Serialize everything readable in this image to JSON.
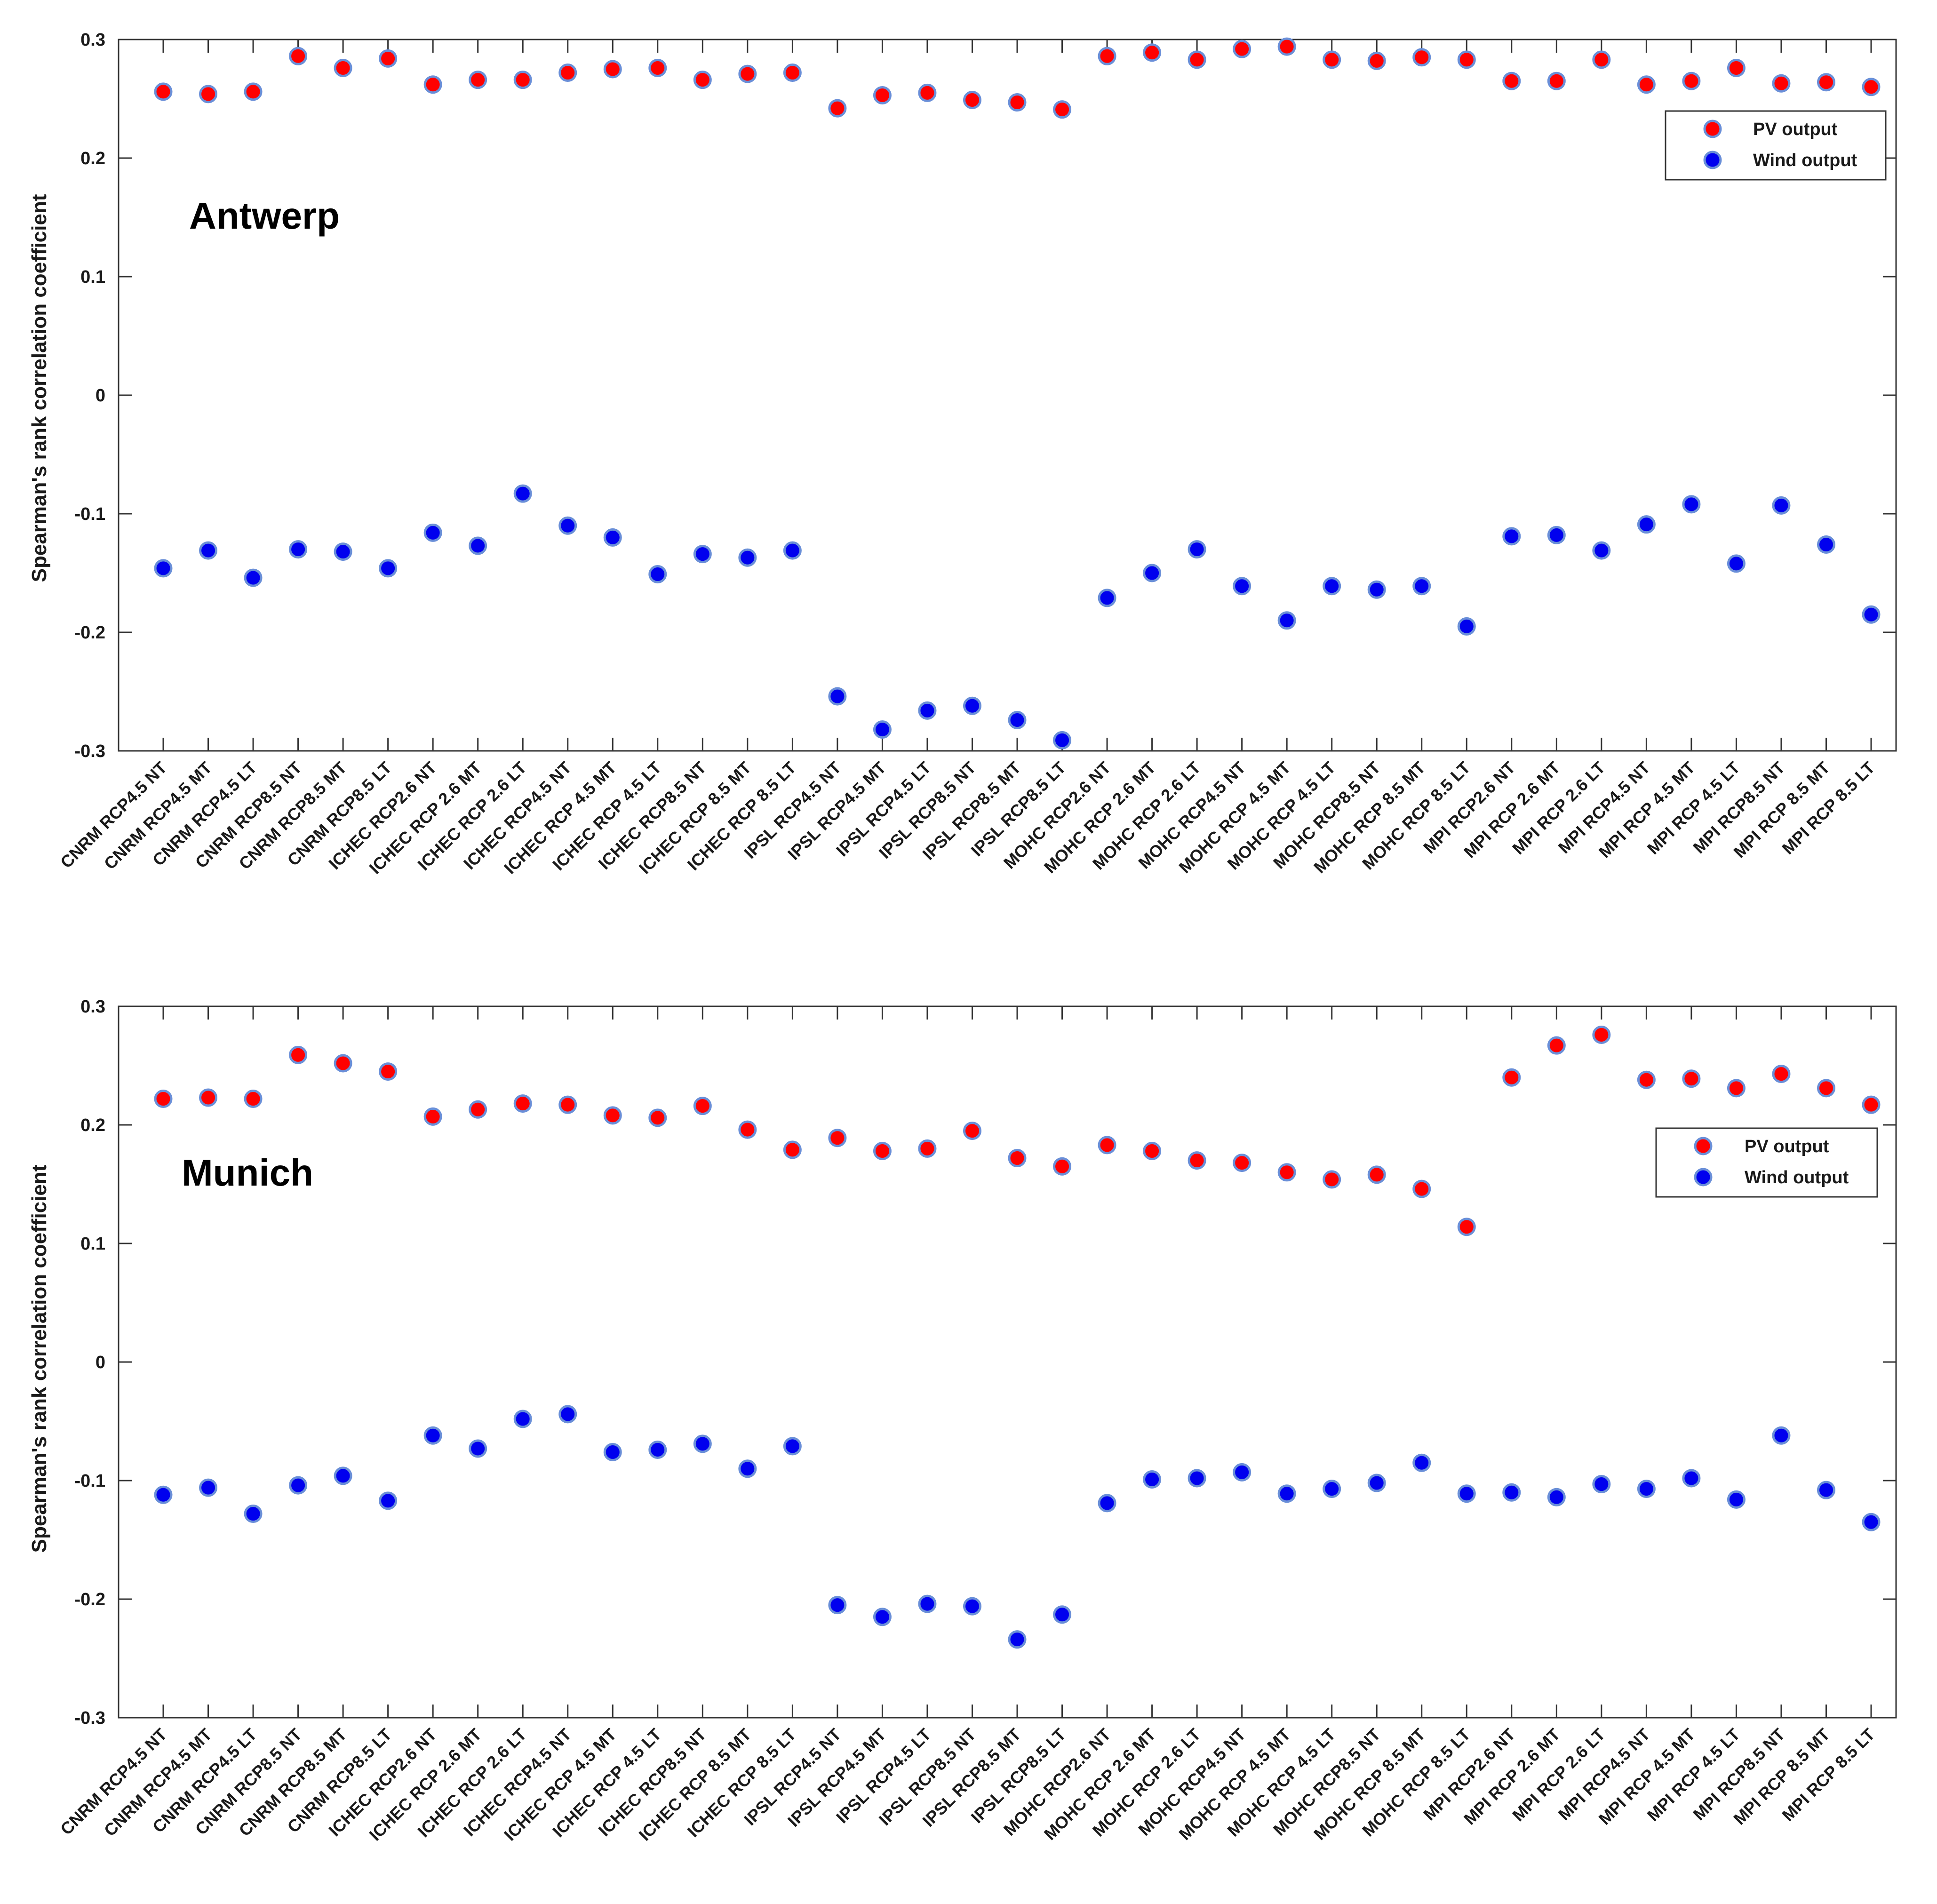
{
  "colors": {
    "pv_fill": "#ff0000",
    "wind_fill": "#0000ee",
    "marker_edge": "#6a8fd8",
    "axis": "#333333"
  },
  "chart_data": [
    {
      "type": "scatter",
      "title": "Antwerp",
      "xlabel": "",
      "ylabel": "Spearman's rank correlation coefficient",
      "ylim": [
        -0.3,
        0.3
      ],
      "yticks": [
        0.3,
        0.2,
        0.1,
        0,
        -0.1,
        -0.2,
        -0.3
      ],
      "ytick_labels": [
        "0.3",
        "0.2",
        "0.1",
        "0",
        "-0.1",
        "-0.2",
        "-0.3"
      ],
      "grid": false,
      "legend_position": "top-right",
      "categories": [
        "CNRM RCP4.5 NT",
        "CNRM RCP4.5 MT",
        "CNRM RCP4.5 LT",
        "CNRM RCP8.5 NT",
        "CNRM RCP8.5 MT",
        "CNRM RCP8.5 LT",
        "ICHEC RCP2.6 NT",
        "ICHEC RCP 2.6 MT",
        "ICHEC RCP 2.6 LT",
        "ICHEC RCP4.5 NT",
        "ICHEC RCP 4.5 MT",
        "ICHEC RCP 4.5 LT",
        "ICHEC RCP8.5 NT",
        "ICHEC RCP 8.5 MT",
        "ICHEC RCP 8.5 LT",
        "IPSL RCP4.5 NT",
        "IPSL RCP4.5 MT",
        "IPSL RCP4.5 LT",
        "IPSL RCP8.5 NT",
        "IPSL RCP8.5 MT",
        "IPSL RCP8.5 LT",
        "MOHC RCP2.6 NT",
        "MOHC RCP 2.6 MT",
        "MOHC RCP 2.6 LT",
        "MOHC RCP4.5 NT",
        "MOHC RCP 4.5 MT",
        "MOHC RCP 4.5 LT",
        "MOHC RCP8.5 NT",
        "MOHC RCP 8.5 MT",
        "MOHC RCP 8.5 LT",
        "MPI RCP2.6 NT",
        "MPI RCP 2.6 MT",
        "MPI RCP 2.6 LT",
        "MPI RCP4.5 NT",
        "MPI RCP 4.5 MT",
        "MPI RCP 4.5 LT",
        "MPI RCP8.5 NT",
        "MPI RCP 8.5 MT",
        "MPI RCP 8.5 LT"
      ],
      "series": [
        {
          "name": "PV output",
          "color": "pv_fill",
          "values": [
            0.256,
            0.254,
            0.256,
            0.286,
            0.276,
            0.284,
            0.262,
            0.266,
            0.266,
            0.272,
            0.275,
            0.276,
            0.266,
            0.271,
            0.272,
            0.242,
            0.253,
            0.255,
            0.249,
            0.247,
            0.241,
            0.286,
            0.289,
            0.283,
            0.292,
            0.294,
            0.283,
            0.282,
            0.285,
            0.283,
            0.265,
            0.265,
            0.283,
            0.262,
            0.265,
            0.276,
            0.263,
            0.264,
            0.26
          ]
        },
        {
          "name": "Wind output",
          "color": "wind_fill",
          "values": [
            -0.146,
            -0.131,
            -0.154,
            -0.13,
            -0.132,
            -0.146,
            -0.116,
            -0.127,
            -0.083,
            -0.11,
            -0.12,
            -0.151,
            -0.134,
            -0.137,
            -0.131,
            -0.254,
            -0.282,
            -0.266,
            -0.262,
            -0.274,
            -0.291,
            -0.171,
            -0.15,
            -0.13,
            -0.161,
            -0.19,
            -0.161,
            -0.164,
            -0.161,
            -0.195,
            -0.119,
            -0.118,
            -0.131,
            -0.109,
            -0.092,
            -0.142,
            -0.093,
            -0.126,
            -0.185
          ]
        }
      ]
    },
    {
      "type": "scatter",
      "title": "Munich",
      "xlabel": "",
      "ylabel": "Spearman's rank correlation coefficient",
      "ylim": [
        -0.3,
        0.3
      ],
      "yticks": [
        0.3,
        0.2,
        0.1,
        0,
        -0.1,
        -0.2,
        -0.3
      ],
      "ytick_labels": [
        "0.3",
        "0.2",
        "0.1",
        "0",
        "-0.1",
        "-0.2",
        "-0.3"
      ],
      "grid": false,
      "legend_position": "top-right",
      "categories": [
        "CNRM RCP4.5 NT",
        "CNRM RCP4.5 MT",
        "CNRM RCP4.5 LT",
        "CNRM RCP8.5 NT",
        "CNRM RCP8.5 MT",
        "CNRM RCP8.5 LT",
        "ICHEC RCP2.6 NT",
        "ICHEC RCP 2.6 MT",
        "ICHEC RCP 2.6 LT",
        "ICHEC RCP4.5 NT",
        "ICHEC RCP 4.5 MT",
        "ICHEC RCP 4.5 LT",
        "ICHEC RCP8.5 NT",
        "ICHEC RCP 8.5 MT",
        "ICHEC RCP 8.5 LT",
        "IPSL RCP4.5 NT",
        "IPSL RCP4.5 MT",
        "IPSL RCP4.5 LT",
        "IPSL RCP8.5 NT",
        "IPSL RCP8.5 MT",
        "IPSL RCP8.5 LT",
        "MOHC RCP2.6 NT",
        "MOHC RCP 2.6 MT",
        "MOHC RCP 2.6 LT",
        "MOHC RCP4.5 NT",
        "MOHC RCP 4.5 MT",
        "MOHC RCP 4.5 LT",
        "MOHC RCP8.5 NT",
        "MOHC RCP 8.5 MT",
        "MOHC RCP 8.5 LT",
        "MPI RCP2.6 NT",
        "MPI RCP 2.6 MT",
        "MPI RCP 2.6 LT",
        "MPI RCP4.5 NT",
        "MPI RCP 4.5 MT",
        "MPI RCP 4.5 LT",
        "MPI RCP8.5 NT",
        "MPI RCP 8.5 MT",
        "MPI RCP 8.5 LT"
      ],
      "series": [
        {
          "name": "PV output",
          "color": "pv_fill",
          "values": [
            0.222,
            0.223,
            0.222,
            0.259,
            0.252,
            0.245,
            0.207,
            0.213,
            0.218,
            0.217,
            0.208,
            0.206,
            0.216,
            0.196,
            0.179,
            0.189,
            0.178,
            0.18,
            0.195,
            0.172,
            0.165,
            0.183,
            0.178,
            0.17,
            0.168,
            0.16,
            0.154,
            0.158,
            0.146,
            0.114,
            0.24,
            0.267,
            0.276,
            0.238,
            0.239,
            0.231,
            0.243,
            0.231,
            0.217
          ]
        },
        {
          "name": "Wind output",
          "color": "wind_fill",
          "values": [
            -0.112,
            -0.106,
            -0.128,
            -0.104,
            -0.096,
            -0.117,
            -0.062,
            -0.073,
            -0.048,
            -0.044,
            -0.076,
            -0.074,
            -0.069,
            -0.09,
            -0.071,
            -0.205,
            -0.215,
            -0.204,
            -0.206,
            -0.234,
            -0.213,
            -0.119,
            -0.099,
            -0.098,
            -0.093,
            -0.111,
            -0.107,
            -0.102,
            -0.085,
            -0.111,
            -0.11,
            -0.114,
            -0.103,
            -0.107,
            -0.098,
            -0.116,
            -0.062,
            -0.108,
            -0.135
          ]
        }
      ]
    }
  ]
}
